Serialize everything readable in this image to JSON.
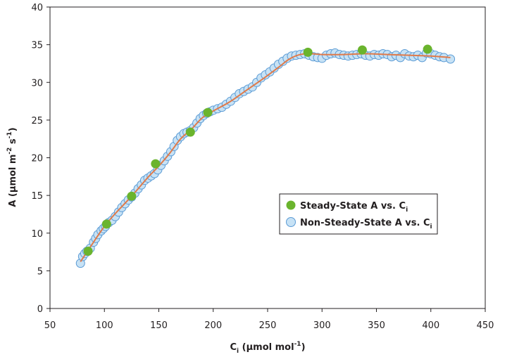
{
  "chart_data": {
    "type": "scatter",
    "xlabel_main": "C",
    "xlabel_sub": "i",
    "xlabel_rest": " (µmol mol",
    "xlabel_sup": "-1",
    "xlabel_end": ")",
    "ylabel_main": "A (µmol m",
    "ylabel_sup1": "-2",
    "ylabel_mid": " s",
    "ylabel_sup2": "-1",
    "ylabel_end": ")",
    "xlim": [
      50,
      450
    ],
    "ylim": [
      0,
      40
    ],
    "x_ticks": [
      "50",
      "100",
      "150",
      "200",
      "250",
      "300",
      "350",
      "400",
      "450"
    ],
    "y_ticks": [
      "0",
      "5",
      "10",
      "15",
      "20",
      "25",
      "30",
      "35",
      "40"
    ],
    "grid": false,
    "legend_position": "right-middle",
    "series": [
      {
        "name": "Steady-State A vs. C",
        "name_sub": "i",
        "marker": "filled circle",
        "color": "#6ab42d",
        "x": [
          85,
          102,
          125,
          147,
          179,
          195,
          287,
          337,
          397
        ],
        "y": [
          7.6,
          11.2,
          14.9,
          19.2,
          23.4,
          26.0,
          34.0,
          34.3,
          34.4
        ]
      },
      {
        "name": "Non-Steady-State A vs. C",
        "name_sub": "i",
        "marker": "hollow circle",
        "color": "#c7e2f5",
        "edge_color": "#5b9bd5",
        "x": [
          78,
          80,
          82,
          84,
          87,
          90,
          92,
          94,
          97,
          99,
          101,
          104,
          107,
          110,
          113,
          116,
          119,
          122,
          125,
          128,
          131,
          134,
          137,
          140,
          143,
          146,
          149,
          152,
          155,
          158,
          161,
          164,
          167,
          170,
          173,
          176,
          179,
          182,
          185,
          188,
          191,
          194,
          197,
          200,
          204,
          208,
          212,
          216,
          220,
          224,
          228,
          232,
          236,
          240,
          244,
          248,
          252,
          256,
          260,
          264,
          268,
          272,
          276,
          280,
          284,
          288,
          292,
          296,
          300,
          304,
          308,
          312,
          316,
          320,
          324,
          328,
          332,
          336,
          340,
          344,
          348,
          352,
          356,
          360,
          364,
          368,
          372,
          376,
          380,
          384,
          388,
          392,
          396,
          400,
          404,
          408,
          412,
          418
        ],
        "y": [
          6.0,
          6.9,
          7.3,
          7.6,
          8.0,
          8.8,
          9.3,
          9.8,
          10.3,
          10.6,
          10.9,
          11.4,
          11.7,
          12.2,
          12.8,
          13.4,
          13.9,
          14.4,
          14.8,
          15.3,
          15.9,
          16.4,
          17.0,
          17.3,
          17.6,
          17.9,
          18.4,
          19.0,
          19.6,
          20.2,
          20.8,
          21.5,
          22.3,
          22.8,
          23.2,
          23.4,
          23.6,
          24.0,
          24.6,
          25.2,
          25.6,
          25.9,
          26.1,
          26.3,
          26.5,
          26.7,
          27.1,
          27.5,
          28.0,
          28.5,
          28.8,
          29.1,
          29.4,
          30.0,
          30.6,
          31.0,
          31.4,
          31.9,
          32.4,
          32.8,
          33.2,
          33.5,
          33.6,
          33.7,
          33.8,
          33.6,
          33.4,
          33.3,
          33.2,
          33.6,
          33.8,
          33.9,
          33.7,
          33.6,
          33.5,
          33.6,
          33.7,
          33.8,
          33.6,
          33.5,
          33.7,
          33.6,
          33.8,
          33.7,
          33.4,
          33.6,
          33.3,
          33.8,
          33.5,
          33.4,
          33.6,
          33.3,
          33.9,
          33.8,
          33.6,
          33.4,
          33.3,
          33.1
        ]
      },
      {
        "name": "",
        "marker": "line",
        "color": "#e07a4a",
        "x": [
          78,
          90,
          100,
          110,
          125,
          140,
          150,
          160,
          170,
          180,
          190,
          200,
          215,
          230,
          245,
          260,
          270,
          280,
          290,
          300,
          320,
          340,
          360,
          380,
          400,
          418
        ],
        "y": [
          6.2,
          8.8,
          10.9,
          12.6,
          14.9,
          17.4,
          18.9,
          20.6,
          22.5,
          23.8,
          25.3,
          26.2,
          27.4,
          28.9,
          30.4,
          32.0,
          33.1,
          33.7,
          33.8,
          33.7,
          33.7,
          33.8,
          33.7,
          33.6,
          33.5,
          33.3
        ]
      }
    ]
  }
}
